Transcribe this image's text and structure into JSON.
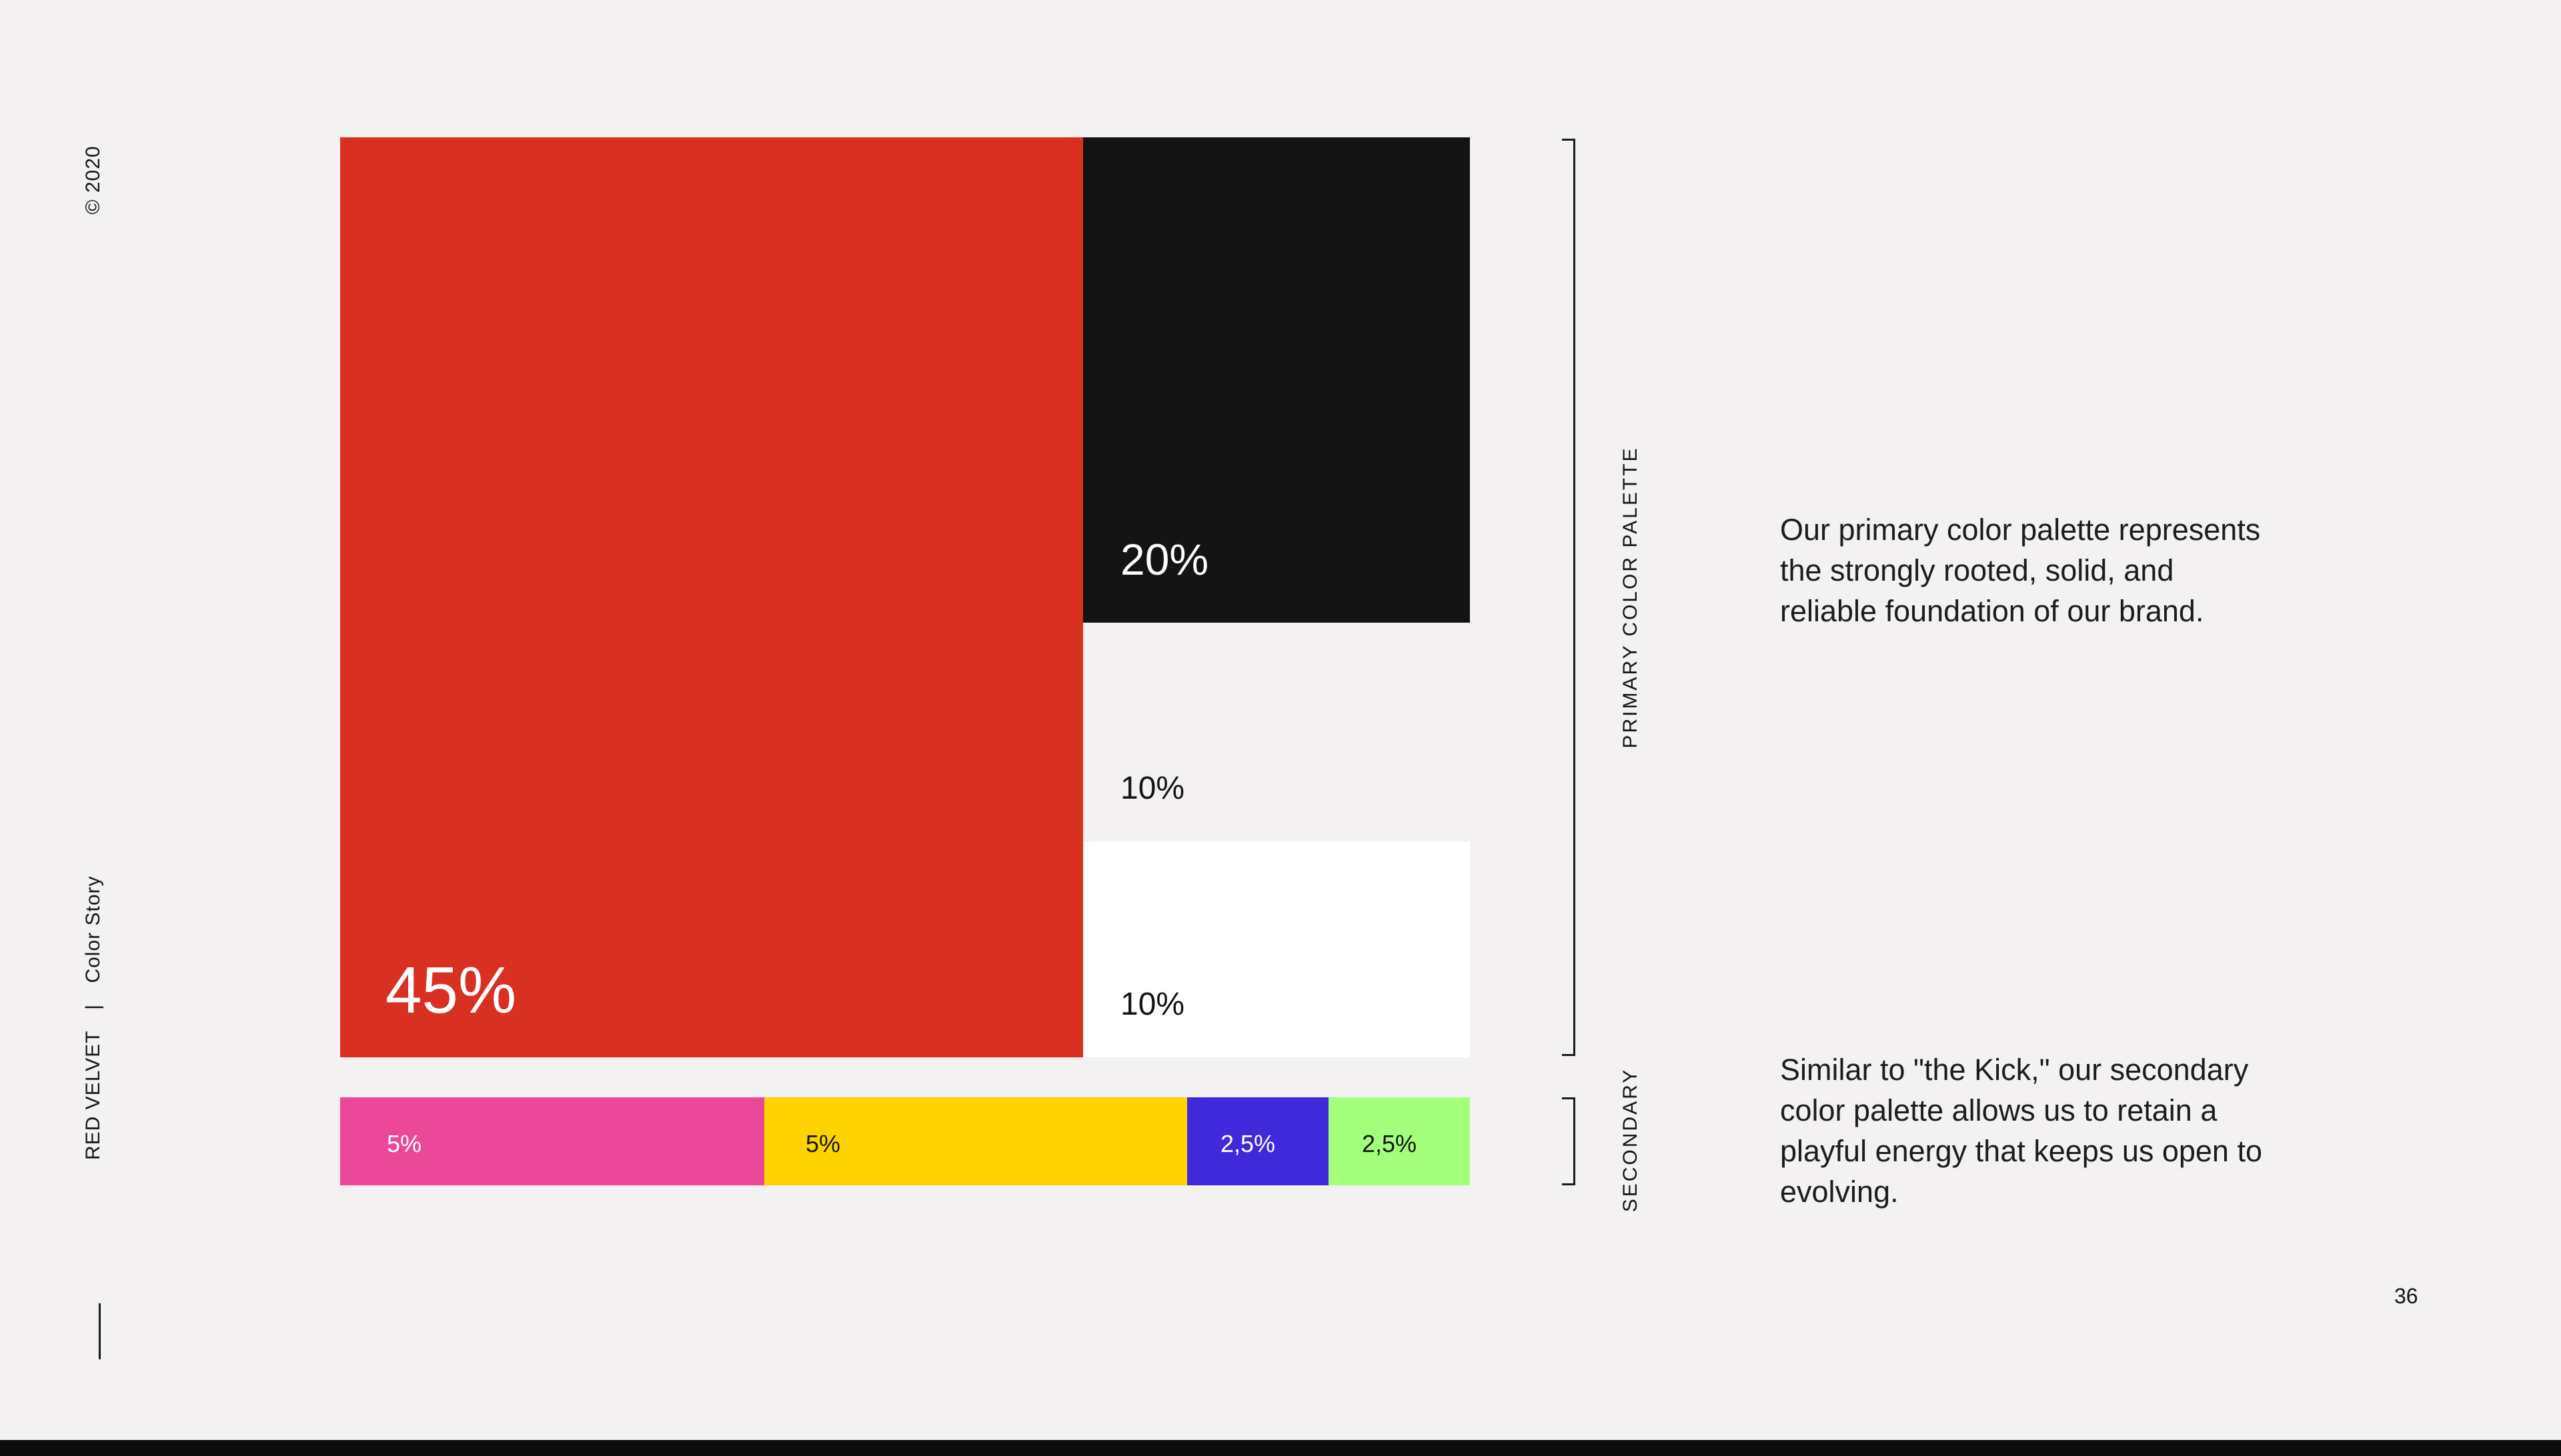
{
  "sidebar": {
    "copyright": "© 2020",
    "brand": "RED VELVET",
    "separator": "|",
    "section": "Color Story"
  },
  "primary_palette": {
    "label": "PRIMARY COLOR PALETTE",
    "swatches": [
      {
        "name": "red",
        "color": "#d93121",
        "percent_label": "45%",
        "share": 45
      },
      {
        "name": "black",
        "color": "#141414",
        "percent_label": "20%",
        "share": 20
      },
      {
        "name": "light-grey",
        "color": "#f3f1f2",
        "percent_label": "10%",
        "share": 10
      },
      {
        "name": "white",
        "color": "#ffffff",
        "percent_label": "10%",
        "share": 10
      }
    ],
    "description": "Our primary color palette represents the strongly rooted, solid, and reliable foundation of our brand."
  },
  "secondary_palette": {
    "label": "SECONDARY",
    "swatches": [
      {
        "name": "pink",
        "color": "#ec4899",
        "percent_label": "5%",
        "share": 5
      },
      {
        "name": "yellow",
        "color": "#ffd300",
        "percent_label": "5%",
        "share": 5
      },
      {
        "name": "blue",
        "color": "#3f29db",
        "percent_label": "2,5%",
        "share": 2.5
      },
      {
        "name": "lime",
        "color": "#a4ff7c",
        "percent_label": "2,5%",
        "share": 2.5
      }
    ],
    "description": "Similar to \"the Kick,\" our secondary color palette allows us to retain a playful energy that keeps us open to evolving."
  },
  "page_number": "36"
}
